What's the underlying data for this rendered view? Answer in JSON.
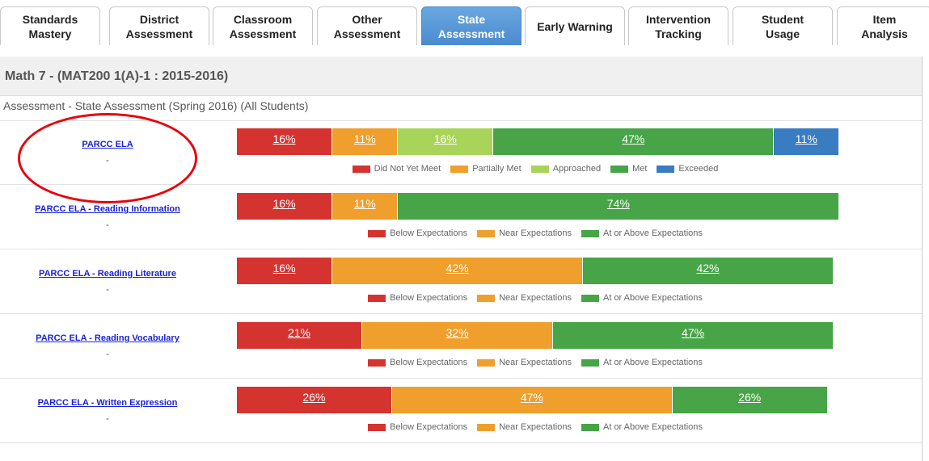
{
  "tabs": [
    {
      "label": "Standards Mastery",
      "active": false
    },
    {
      "label": "District Assessment",
      "active": false
    },
    {
      "label": "Classroom Assessment",
      "active": false
    },
    {
      "label": "Other Assessment",
      "active": false
    },
    {
      "label": "State Assessment",
      "active": true
    },
    {
      "label": "Early Warning",
      "active": false
    },
    {
      "label": "Intervention Tracking",
      "active": false
    },
    {
      "label": "Student Usage",
      "active": false
    },
    {
      "label": "Item Analysis",
      "active": false
    }
  ],
  "panel": {
    "title": "Math 7 - (MAT200 1(A)-1 : 2015-2016)",
    "subtitle": "Assessment - State Assessment (Spring 2016) (All Students)",
    "rows": [
      {
        "name": "PARCC ELA",
        "note": "-",
        "segments": [
          {
            "label": "Did Not Yet Meet",
            "color": "#d5332f",
            "value": 16,
            "value_label": "16%"
          },
          {
            "label": "Partially Met",
            "color": "#f09e2c",
            "value": 11,
            "value_label": "11%"
          },
          {
            "label": "Approached",
            "color": "#a8d45a",
            "value": 16,
            "value_label": "16%"
          },
          {
            "label": "Met",
            "color": "#47a447",
            "value": 47,
            "value_label": "47%"
          },
          {
            "label": "Exceeded",
            "color": "#3a7cc2",
            "value": 11,
            "value_label": "11%"
          }
        ]
      },
      {
        "name": "PARCC ELA - Reading Information",
        "note": "-",
        "segments": [
          {
            "label": "Below Expectations",
            "color": "#d5332f",
            "value": 16,
            "value_label": "16%"
          },
          {
            "label": "Near Expectations",
            "color": "#f09e2c",
            "value": 11,
            "value_label": "11%"
          },
          {
            "label": "At or Above Expectations",
            "color": "#47a447",
            "value": 74,
            "value_label": "74%"
          }
        ]
      },
      {
        "name": "PARCC ELA - Reading Literature",
        "note": "-",
        "segments": [
          {
            "label": "Below Expectations",
            "color": "#d5332f",
            "value": 16,
            "value_label": "16%"
          },
          {
            "label": "Near Expectations",
            "color": "#f09e2c",
            "value": 42,
            "value_label": "42%"
          },
          {
            "label": "At or Above Expectations",
            "color": "#47a447",
            "value": 42,
            "value_label": "42%"
          }
        ]
      },
      {
        "name": "PARCC ELA - Reading Vocabulary",
        "note": "-",
        "segments": [
          {
            "label": "Below Expectations",
            "color": "#d5332f",
            "value": 21,
            "value_label": "21%"
          },
          {
            "label": "Near Expectations",
            "color": "#f09e2c",
            "value": 32,
            "value_label": "32%"
          },
          {
            "label": "At or Above Expectations",
            "color": "#47a447",
            "value": 47,
            "value_label": "47%"
          }
        ]
      },
      {
        "name": "PARCC ELA - Written Expression",
        "note": "-",
        "segments": [
          {
            "label": "Below Expectations",
            "color": "#d5332f",
            "value": 26,
            "value_label": "26%"
          },
          {
            "label": "Near Expectations",
            "color": "#f09e2c",
            "value": 47,
            "value_label": "47%"
          },
          {
            "label": "At or Above Expectations",
            "color": "#47a447",
            "value": 26,
            "value_label": "26%"
          }
        ]
      }
    ]
  }
}
